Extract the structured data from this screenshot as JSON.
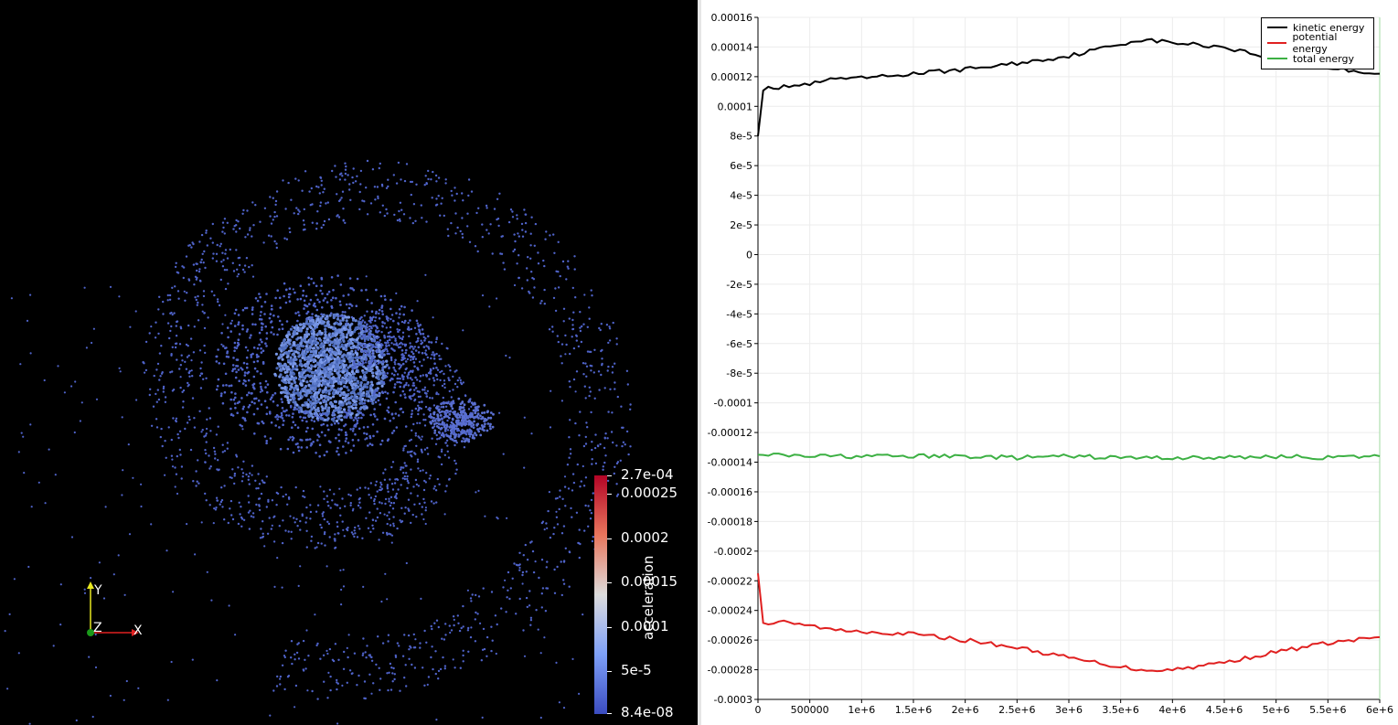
{
  "viewport_3d": {
    "background": "#000000",
    "point_color": "#4f63c9",
    "colorbar": {
      "title": "acceleration",
      "labels": [
        "2.7e-04",
        "0.00025",
        "0.0002",
        "0.00015",
        "0.0001",
        "5e-5",
        "8.4e-08"
      ]
    },
    "orientation_axes": {
      "x": "X",
      "y": "Y",
      "z": "Z"
    }
  },
  "chart_data": {
    "type": "line",
    "title": "",
    "xlabel": "",
    "ylabel": "",
    "xlim": [
      0,
      6000000
    ],
    "ylim": [
      -0.0003,
      0.00016
    ],
    "x_tick_labels": [
      "0",
      "500000",
      "1e+6",
      "1.5e+6",
      "2e+6",
      "2.5e+6",
      "3e+6",
      "3.5e+6",
      "4e+6",
      "4.5e+6",
      "5e+6",
      "5.5e+6",
      "6e+6"
    ],
    "y_tick_labels": [
      "0.00016",
      "0.00014",
      "0.00012",
      "0.0001",
      "8e-5",
      "6e-5",
      "4e-5",
      "2e-5",
      "0",
      "-2e-5",
      "-4e-5",
      "-6e-5",
      "-8e-5",
      "-0.0001",
      "-0.00012",
      "-0.00014",
      "-0.00016",
      "-0.00018",
      "-0.0002",
      "-0.00022",
      "-0.00024",
      "-0.00026",
      "-0.00028",
      "-0.0003"
    ],
    "grid": true,
    "legend_position": "top-right",
    "series": [
      {
        "name": "kinetic energy",
        "color": "#000000",
        "x": [
          0,
          50000,
          100000,
          200000,
          300000,
          400000,
          600000,
          700000,
          800000,
          900000,
          1000000,
          1200000,
          1500000,
          2000000,
          2500000,
          3000000,
          3500000,
          3700000,
          4000000,
          4500000,
          5000000,
          5500000,
          6000000
        ],
        "y": [
          8e-05,
          0.000112,
          0.000114,
          0.000112,
          0.000114,
          0.000114,
          0.000116,
          0.000118,
          0.000119,
          0.000118,
          0.000119,
          0.00012,
          0.000122,
          0.000125,
          0.000129,
          0.000134,
          0.000142,
          0.000145,
          0.000143,
          0.00014,
          0.000132,
          0.000126,
          0.000122
        ]
      },
      {
        "name": "potential energy",
        "color": "#e02020",
        "x": [
          0,
          50000,
          100000,
          200000,
          300000,
          500000,
          700000,
          1000000,
          1500000,
          2000000,
          2500000,
          3000000,
          3500000,
          3700000,
          4000000,
          4500000,
          5000000,
          5500000,
          6000000
        ],
        "y": [
          -0.000215,
          -0.000248,
          -0.00025,
          -0.000247,
          -0.000249,
          -0.00025,
          -0.000253,
          -0.000254,
          -0.000256,
          -0.00026,
          -0.000265,
          -0.000272,
          -0.000278,
          -0.00028,
          -0.00028,
          -0.000275,
          -0.000268,
          -0.000262,
          -0.000258
        ]
      },
      {
        "name": "total energy",
        "color": "#3cb043",
        "x": [
          0,
          500000,
          1000000,
          1500000,
          2000000,
          2500000,
          3000000,
          3500000,
          4000000,
          4500000,
          5000000,
          5500000,
          6000000
        ],
        "y": [
          -0.000135,
          -0.000136,
          -0.000136,
          -0.000136,
          -0.000136,
          -0.000137,
          -0.000136,
          -0.000137,
          -0.000137,
          -0.000137,
          -0.000136,
          -0.000137,
          -0.000136
        ]
      }
    ]
  }
}
